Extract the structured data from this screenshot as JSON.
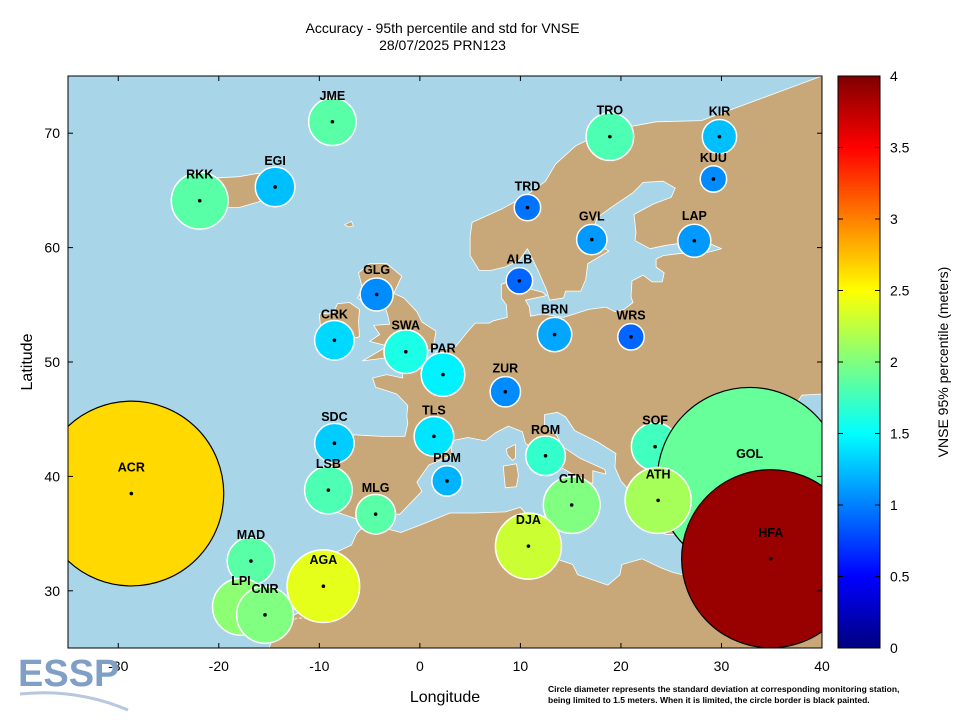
{
  "title": {
    "line1": "Accuracy - 95th percentile and std for VNSE",
    "line2": "28/07/2025 PRN123"
  },
  "map": {
    "xlabel": "Longitude",
    "ylabel": "Latitude",
    "lon_range": [
      -35,
      40
    ],
    "lat_range": [
      25,
      75
    ],
    "x_ticks": [
      -30,
      -20,
      -10,
      0,
      10,
      20,
      30,
      40
    ],
    "y_ticks": [
      30,
      40,
      50,
      60,
      70
    ],
    "colors": {
      "sea": "#a8d5e8",
      "land": "#c8a878",
      "coast": "#ffffff"
    }
  },
  "colorbar": {
    "label": "VNSE 95% percentile (meters)",
    "range": [
      0,
      4
    ],
    "ticks": [
      "0",
      "0.5",
      "1",
      "1.5",
      "2",
      "2.5",
      "3",
      "3.5",
      "4"
    ]
  },
  "stations": [
    {
      "name": "JME",
      "lon": -8.7,
      "lat": 71.0,
      "p95": 1.85,
      "std": 0.36
    },
    {
      "name": "TRO",
      "lon": 18.9,
      "lat": 69.7,
      "p95": 1.8,
      "std": 0.36
    },
    {
      "name": "KIR",
      "lon": 20.4,
      "lat": 67.9,
      "p95": 1.25,
      "std": 0.26,
      "plot_lon": 29.8,
      "plot_lat": 69.7
    },
    {
      "name": "RKK",
      "lon": -21.9,
      "lat": 64.1,
      "p95": 1.85,
      "std": 0.43
    },
    {
      "name": "EGI",
      "lon": -14.4,
      "lat": 65.3,
      "p95": 1.25,
      "std": 0.3
    },
    {
      "name": "KUU",
      "lon": 29.2,
      "lat": 66.0,
      "p95": 1.05,
      "std": 0.2
    },
    {
      "name": "TRD",
      "lon": 10.7,
      "lat": 63.5,
      "p95": 0.95,
      "std": 0.2
    },
    {
      "name": "GVL",
      "lon": 17.1,
      "lat": 60.7,
      "p95": 1.1,
      "std": 0.23
    },
    {
      "name": "LAP",
      "lon": 27.3,
      "lat": 60.6,
      "p95": 1.1,
      "std": 0.25
    },
    {
      "name": "ALB",
      "lon": 9.9,
      "lat": 57.1,
      "p95": 0.9,
      "std": 0.2
    },
    {
      "name": "GLG",
      "lon": -4.3,
      "lat": 55.9,
      "p95": 1.05,
      "std": 0.25
    },
    {
      "name": "CRK",
      "lon": -8.5,
      "lat": 51.9,
      "p95": 1.35,
      "std": 0.3
    },
    {
      "name": "BRN",
      "lon": 13.4,
      "lat": 52.4,
      "p95": 1.15,
      "std": 0.26
    },
    {
      "name": "WRS",
      "lon": 21.0,
      "lat": 52.2,
      "p95": 0.9,
      "std": 0.2
    },
    {
      "name": "SWA",
      "lon": -1.4,
      "lat": 50.9,
      "p95": 1.6,
      "std": 0.33
    },
    {
      "name": "PAR",
      "lon": 2.3,
      "lat": 48.9,
      "p95": 1.45,
      "std": 0.33
    },
    {
      "name": "ZUR",
      "lon": 8.5,
      "lat": 47.4,
      "p95": 1.05,
      "std": 0.23
    },
    {
      "name": "TLS",
      "lon": 1.4,
      "lat": 43.5,
      "p95": 1.4,
      "std": 0.3
    },
    {
      "name": "SDC",
      "lon": -8.5,
      "lat": 42.9,
      "p95": 1.3,
      "std": 0.3
    },
    {
      "name": "ROM",
      "lon": 12.5,
      "lat": 41.8,
      "p95": 1.7,
      "std": 0.3
    },
    {
      "name": "SOF",
      "lon": 23.4,
      "lat": 42.6,
      "p95": 1.75,
      "std": 0.36
    },
    {
      "name": "GOL",
      "lon": 32.8,
      "lat": 39.7,
      "p95": 1.9,
      "std": 1.4
    },
    {
      "name": "ACR",
      "lon": -28.7,
      "lat": 38.5,
      "p95": 2.65,
      "std": 1.4
    },
    {
      "name": "LSB",
      "lon": -9.1,
      "lat": 38.8,
      "p95": 1.8,
      "std": 0.36
    },
    {
      "name": "PDM",
      "lon": 2.7,
      "lat": 39.6,
      "p95": 1.2,
      "std": 0.23
    },
    {
      "name": "MLG",
      "lon": -4.4,
      "lat": 36.7,
      "p95": 1.85,
      "std": 0.3
    },
    {
      "name": "CTN",
      "lon": 15.1,
      "lat": 37.5,
      "p95": 2.0,
      "std": 0.43
    },
    {
      "name": "ATH",
      "lon": 23.7,
      "lat": 37.9,
      "p95": 2.15,
      "std": 0.5
    },
    {
      "name": "DJA",
      "lon": 10.8,
      "lat": 33.9,
      "p95": 2.3,
      "std": 0.5
    },
    {
      "name": "HFA",
      "lon": 34.9,
      "lat": 32.8,
      "p95": 3.9,
      "std": 1.35,
      "limited": true
    },
    {
      "name": "MAD",
      "lon": -16.8,
      "lat": 32.6,
      "p95": 1.85,
      "std": 0.36
    },
    {
      "name": "AGA",
      "lon": -9.6,
      "lat": 30.4,
      "p95": 2.4,
      "std": 0.55
    },
    {
      "name": "LPI",
      "lon": -17.8,
      "lat": 28.6,
      "p95": 2.05,
      "std": 0.43
    },
    {
      "name": "CNR",
      "lon": -15.4,
      "lat": 27.9,
      "p95": 2.0,
      "std": 0.43
    }
  ],
  "footnote": {
    "line1": "Circle diameter represents the standard deviation at corresponding monitoring station,",
    "line2": "being limited to 1.5 meters. When it is limited, the circle border is black painted."
  },
  "logo": {
    "text": "ESSP",
    "color": "#7f9fc6"
  }
}
